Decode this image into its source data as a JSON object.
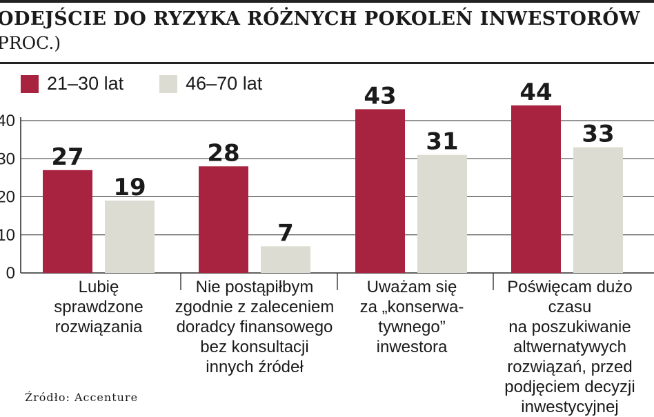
{
  "header": {
    "title": "ODEJŚCIE DO RYZYKA RÓŻNYCH POKOLEŃ INWESTORÓW",
    "subtitle": "PROC.)"
  },
  "source": "Źródło: Accenture",
  "colors": {
    "series1": "#a8233f",
    "series2": "#dcdcd2",
    "axis": "#333333",
    "grid": "#2a2a2a"
  },
  "chart_data": {
    "type": "bar",
    "title": "ODEJŚCIE DO RYZYKA RÓŻNYCH POKOLEŃ INWESTORÓW",
    "subtitle": "PROC.)",
    "categories": [
      "Lubię\nsprawdzone\nrozwiązania",
      "Nie postąpiłbym\nzgodnie z zaleceniem\ndoradcy finansowego\nbez konsultacji\ninnych źródeł",
      "Uważam się\nza „konserwa-\ntywnego”\ninwestora",
      "Poświęcam dużo czasu\nna poszukiwanie\naltwernatywych\nrozwiązań, przed\npodjęciem decyzji\ninwestycyjnej"
    ],
    "series": [
      {
        "name": "21–30 lat",
        "values": [
          27,
          28,
          43,
          44
        ]
      },
      {
        "name": "46–70 lat",
        "values": [
          19,
          7,
          31,
          33
        ]
      }
    ],
    "y_ticks": [
      "0",
      "10",
      "20",
      "30",
      "40"
    ],
    "ylim": [
      0,
      40
    ],
    "grid": true,
    "legend": "top-left",
    "xlabel": "",
    "ylabel": ""
  }
}
